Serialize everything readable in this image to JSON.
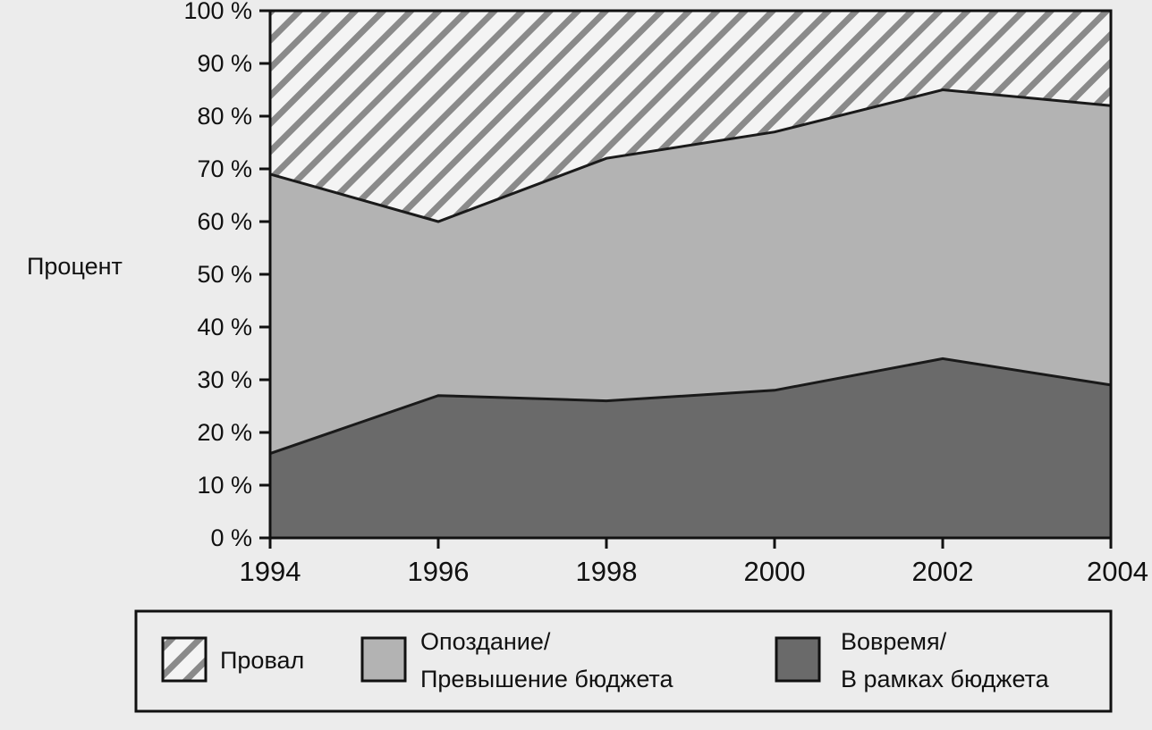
{
  "chart_data": {
    "type": "area",
    "stacked": true,
    "percent": true,
    "title": "",
    "xlabel": "",
    "ylabel": "Процент",
    "x": [
      1994,
      1996,
      1998,
      2000,
      2002,
      2004
    ],
    "ylim": [
      0,
      100
    ],
    "xticks": [
      "1994",
      "1996",
      "1998",
      "2000",
      "2002",
      "2004"
    ],
    "yticks": [
      "0 %",
      "10 %",
      "20 %",
      "30 %",
      "40 %",
      "50 %",
      "60 %",
      "70 %",
      "80 %",
      "90 %",
      "100 %"
    ],
    "series": [
      {
        "name": "Вовремя/ В рамках бюджета",
        "values": [
          16,
          27,
          26,
          28,
          34,
          29
        ],
        "color": "#6a6a6a",
        "pattern": "solid"
      },
      {
        "name": "Опоздание/ Превышение бюджета",
        "values": [
          53,
          33,
          46,
          49,
          51,
          53
        ],
        "color": "#b3b3b3",
        "pattern": "solid"
      },
      {
        "name": "Провал",
        "values": [
          31,
          40,
          28,
          23,
          15,
          18
        ],
        "color": "#ffffff",
        "pattern": "hatch"
      }
    ],
    "legend": {
      "position": "bottom",
      "items": [
        {
          "line1": "Провал",
          "line2": ""
        },
        {
          "line1": "Опоздание/",
          "line2": "Превышение бюджета"
        },
        {
          "line1": "Вовремя/",
          "line2": "В рамках бюджета"
        }
      ]
    },
    "grid": false
  }
}
